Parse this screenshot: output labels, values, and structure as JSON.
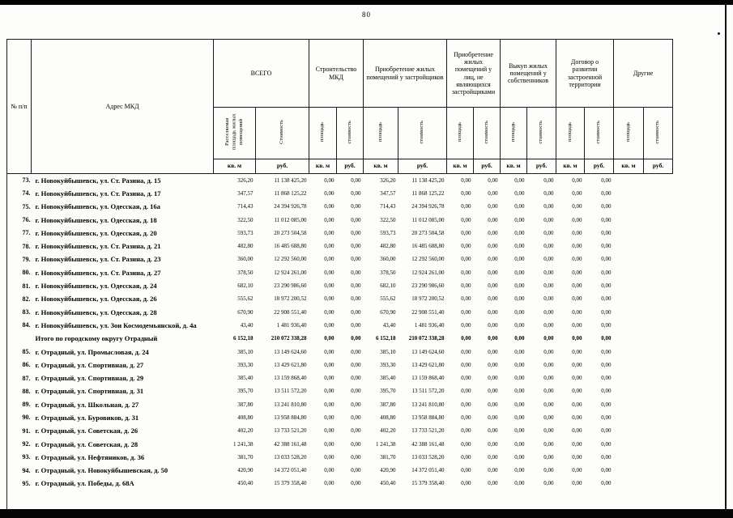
{
  "page": {
    "number": "80"
  },
  "colors": {
    "ink": "#000000",
    "paper": "#fdfdfb"
  },
  "table": {
    "col_npp": "№ п/п",
    "col_address": "Адрес МКД",
    "groups": [
      {
        "title": "ВСЕГО",
        "sub": [
          "Расселяемая площадь жилых помещений",
          "Стоимость"
        ]
      },
      {
        "title": "Строительство МКД",
        "sub": [
          "площадь",
          "стоимость"
        ]
      },
      {
        "title": "Приобретение жилых помещений у застройщиков",
        "sub": [
          "площадь",
          "стоимость"
        ]
      },
      {
        "title": "Приобретение жилых помещений у лиц, не являющихся застройщиками",
        "sub": [
          "площадь",
          "стоимость"
        ]
      },
      {
        "title": "Выкуп жилых помещений у собственников",
        "sub": [
          "площадь",
          "стоимость"
        ]
      },
      {
        "title": "Договор о развитии застроенной территории",
        "sub": [
          "площадь",
          "стоимость"
        ]
      },
      {
        "title": "Другие",
        "sub": [
          "площадь",
          "стоимость"
        ]
      }
    ],
    "units": [
      "кв. м",
      "руб.",
      "кв. м",
      "руб.",
      "кв. м",
      "руб.",
      "кв. м",
      "руб.",
      "кв. м",
      "руб.",
      "кв. м",
      "руб.",
      "кв. м",
      "руб."
    ],
    "rows": [
      {
        "num": "73.",
        "address": "г. Новокуйбышевск, ул. Ст. Разина, д. 15",
        "total": false,
        "values": [
          "326,20",
          "11 138 425,20",
          "0,00",
          "0,00",
          "326,20",
          "11 138 425,20",
          "0,00",
          "0,00",
          "0,00",
          "0,00",
          "0,00",
          "0,00",
          "",
          ""
        ]
      },
      {
        "num": "74.",
        "address": "г. Новокуйбышевск, ул. Ст. Разина, д. 17",
        "total": false,
        "values": [
          "347,57",
          "11 868 125,22",
          "0,00",
          "0,00",
          "347,57",
          "11 868 125,22",
          "0,00",
          "0,00",
          "0,00",
          "0,00",
          "0,00",
          "0,00",
          "",
          ""
        ]
      },
      {
        "num": "75.",
        "address": "г. Новокуйбышевск, ул. Одесская, д. 16а",
        "total": false,
        "values": [
          "714,43",
          "24 394 926,78",
          "0,00",
          "0,00",
          "714,43",
          "24 394 926,78",
          "0,00",
          "0,00",
          "0,00",
          "0,00",
          "0,00",
          "0,00",
          "",
          ""
        ]
      },
      {
        "num": "76.",
        "address": "г. Новокуйбышевск, ул. Одесская, д. 18",
        "total": false,
        "values": [
          "322,50",
          "11 012 085,00",
          "0,00",
          "0,00",
          "322,50",
          "11 012 085,00",
          "0,00",
          "0,00",
          "0,00",
          "0,00",
          "0,00",
          "0,00",
          "",
          ""
        ]
      },
      {
        "num": "77.",
        "address": "г. Новокуйбышевск, ул. Одесская, д. 20",
        "total": false,
        "values": [
          "593,73",
          "20 273 504,58",
          "0,00",
          "0,00",
          "593,73",
          "20 273 504,58",
          "0,00",
          "0,00",
          "0,00",
          "0,00",
          "0,00",
          "0,00",
          "",
          ""
        ]
      },
      {
        "num": "78.",
        "address": "г. Новокуйбышевск, ул. Ст. Разина, д. 21",
        "total": false,
        "values": [
          "482,80",
          "16 485 688,80",
          "0,00",
          "0,00",
          "482,80",
          "16 485 688,80",
          "0,00",
          "0,00",
          "0,00",
          "0,00",
          "0,00",
          "0,00",
          "",
          ""
        ]
      },
      {
        "num": "79.",
        "address": "г. Новокуйбышевск, ул. Ст. Разина, д. 23",
        "total": false,
        "values": [
          "360,00",
          "12 292 560,00",
          "0,00",
          "0,00",
          "360,00",
          "12 292 560,00",
          "0,00",
          "0,00",
          "0,00",
          "0,00",
          "0,00",
          "0,00",
          "",
          ""
        ]
      },
      {
        "num": "80.",
        "address": "г. Новокуйбышевск, ул. Ст. Разина, д. 27",
        "total": false,
        "values": [
          "378,50",
          "12 924 261,00",
          "0,00",
          "0,00",
          "378,50",
          "12 924 261,00",
          "0,00",
          "0,00",
          "0,00",
          "0,00",
          "0,00",
          "0,00",
          "",
          ""
        ]
      },
      {
        "num": "81.",
        "address": "г. Новокуйбышевск, ул. Одесская, д. 24",
        "total": false,
        "values": [
          "682,10",
          "23 290 986,60",
          "0,00",
          "0,00",
          "682,10",
          "23 290 986,60",
          "0,00",
          "0,00",
          "0,00",
          "0,00",
          "0,00",
          "0,00",
          "",
          ""
        ]
      },
      {
        "num": "82.",
        "address": "г. Новокуйбышевск, ул. Одесская, д. 26",
        "total": false,
        "values": [
          "555,62",
          "18 972 200,52",
          "0,00",
          "0,00",
          "555,62",
          "18 972 200,52",
          "0,00",
          "0,00",
          "0,00",
          "0,00",
          "0,00",
          "0,00",
          "",
          ""
        ]
      },
      {
        "num": "83.",
        "address": "г. Новокуйбышевск, ул. Одесская, д. 28",
        "total": false,
        "values": [
          "670,90",
          "22 908 551,40",
          "0,00",
          "0,00",
          "670,90",
          "22 908 551,40",
          "0,00",
          "0,00",
          "0,00",
          "0,00",
          "0,00",
          "0,00",
          "",
          ""
        ]
      },
      {
        "num": "84.",
        "address": "г. Новокуйбышевск, ул. Зои Космодемьянской, д. 4а",
        "total": false,
        "values": [
          "43,40",
          "1 481 936,40",
          "0,00",
          "0,00",
          "43,40",
          "1 481 936,40",
          "0,00",
          "0,00",
          "0,00",
          "0,00",
          "0,00",
          "0,00",
          "",
          ""
        ]
      },
      {
        "num": "",
        "address": "Итого по городскому округу Отрадный",
        "total": true,
        "values": [
          "6 152,18",
          "210 072 338,28",
          "0,00",
          "0,00",
          "6 152,18",
          "210 072 338,28",
          "0,00",
          "0,00",
          "0,00",
          "0,00",
          "0,00",
          "0,00",
          "",
          ""
        ]
      },
      {
        "num": "85.",
        "address": "г. Отрадный, ул. Промысловая, д. 24",
        "total": false,
        "values": [
          "385,10",
          "13 149 624,60",
          "0,00",
          "0,00",
          "385,10",
          "13 149 624,60",
          "0,00",
          "0,00",
          "0,00",
          "0,00",
          "0,00",
          "0,00",
          "",
          ""
        ]
      },
      {
        "num": "86.",
        "address": "г. Отрадный, ул. Спортивная, д. 27",
        "total": false,
        "values": [
          "393,30",
          "13 429 621,80",
          "0,00",
          "0,00",
          "393,30",
          "13 429 621,80",
          "0,00",
          "0,00",
          "0,00",
          "0,00",
          "0,00",
          "0,00",
          "",
          ""
        ]
      },
      {
        "num": "87.",
        "address": "г. Отрадный, ул. Спортивная, д. 29",
        "total": false,
        "values": [
          "385,40",
          "13 159 868,40",
          "0,00",
          "0,00",
          "385,40",
          "13 159 868,40",
          "0,00",
          "0,00",
          "0,00",
          "0,00",
          "0,00",
          "0,00",
          "",
          ""
        ]
      },
      {
        "num": "88.",
        "address": "г. Отрадный, ул. Спортивная, д. 31",
        "total": false,
        "values": [
          "395,70",
          "13 511 572,20",
          "0,00",
          "0,00",
          "395,70",
          "13 511 572,20",
          "0,00",
          "0,00",
          "0,00",
          "0,00",
          "0,00",
          "0,00",
          "",
          ""
        ]
      },
      {
        "num": "89.",
        "address": "г. Отрадный, ул. Школьная, д. 27",
        "total": false,
        "values": [
          "387,80",
          "13 241 810,80",
          "0,00",
          "0,00",
          "387,80",
          "13 241 810,80",
          "0,00",
          "0,00",
          "0,00",
          "0,00",
          "0,00",
          "0,00",
          "",
          ""
        ]
      },
      {
        "num": "90.",
        "address": "г. Отрадный, ул. Буровиков, д. 31",
        "total": false,
        "values": [
          "408,80",
          "13 958 884,80",
          "0,00",
          "0,00",
          "408,80",
          "13 958 884,80",
          "0,00",
          "0,00",
          "0,00",
          "0,00",
          "0,00",
          "0,00",
          "",
          ""
        ]
      },
      {
        "num": "91.",
        "address": "г. Отрадный, ул. Советская, д. 26",
        "total": false,
        "values": [
          "402,20",
          "13 733 521,20",
          "0,00",
          "0,00",
          "402,20",
          "13 733 521,20",
          "0,00",
          "0,00",
          "0,00",
          "0,00",
          "0,00",
          "0,00",
          "",
          ""
        ]
      },
      {
        "num": "92.",
        "address": "г. Отрадный, ул. Советская, д. 28",
        "total": false,
        "values": [
          "1 241,38",
          "42 388 161,48",
          "0,00",
          "0,00",
          "1 241,38",
          "42 388 161,48",
          "0,00",
          "0,00",
          "0,00",
          "0,00",
          "0,00",
          "0,00",
          "",
          ""
        ]
      },
      {
        "num": "93.",
        "address": "г. Отрадный, ул. Нефтяников, д. 36",
        "total": false,
        "values": [
          "381,70",
          "13 033 528,20",
          "0,00",
          "0,00",
          "381,70",
          "13 033 528,20",
          "0,00",
          "0,00",
          "0,00",
          "0,00",
          "0,00",
          "0,00",
          "",
          ""
        ]
      },
      {
        "num": "94.",
        "address": "г. Отрадный, ул. Новокуйбышевская, д. 50",
        "total": false,
        "values": [
          "420,90",
          "14 372 051,40",
          "0,00",
          "0,00",
          "420,90",
          "14 372 051,40",
          "0,00",
          "0,00",
          "0,00",
          "0,00",
          "0,00",
          "0,00",
          "",
          ""
        ]
      },
      {
        "num": "95.",
        "address": "г. Отрадный, ул. Победы, д. 68А",
        "total": false,
        "values": [
          "450,40",
          "15 379 358,40",
          "0,00",
          "0,00",
          "450,40",
          "15 379 358,40",
          "0,00",
          "0,00",
          "0,00",
          "0,00",
          "0,00",
          "0,00",
          "",
          ""
        ]
      }
    ]
  }
}
